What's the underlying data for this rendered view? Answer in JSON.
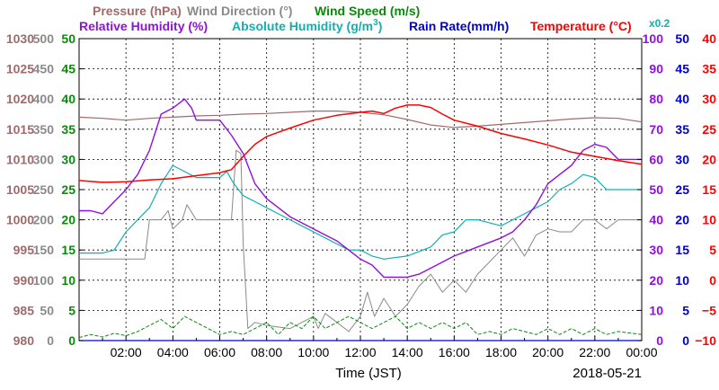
{
  "legend": {
    "pressure": "Pressure (hPa)",
    "wind_dir": "Wind Direction (°)",
    "wind_speed": "Wind Speed (m/s)",
    "rh": "Relative Humidity (%)",
    "ah_text": "Absolute Humidity (g/m",
    "ah_sup": "3",
    "ah_close": ")",
    "rain": "Rain Rate(mm/h)",
    "temp": "Temperature (°C)",
    "x02": "x0.2"
  },
  "xlabel": "Time (JST)",
  "date": "2018-05-21",
  "colors": {
    "pressure": "#a06a6a",
    "wind_dir": "#8a8a8a",
    "wind_speed": "#0a8a0a",
    "rh": "#9010e0",
    "ah": "#10b0b0",
    "rain": "#0000d0",
    "temp": "#ff0000",
    "grid": "#000000"
  },
  "chart_data": {
    "type": "line",
    "x_ticks": [
      "02:00",
      "04:00",
      "06:00",
      "08:00",
      "10:00",
      "12:00",
      "14:00",
      "16:00",
      "18:00",
      "20:00",
      "22:00",
      "00:00"
    ],
    "x_range_hours": [
      0,
      24
    ],
    "axes": {
      "pressure": {
        "range": [
          980,
          1030
        ],
        "ticks": [
          "980",
          "985",
          "990",
          "995",
          "1000",
          "1005",
          "1010",
          "1015",
          "1020",
          "1025",
          "1030"
        ]
      },
      "wind_dir": {
        "range": [
          0,
          500
        ],
        "ticks": [
          "0",
          "50",
          "100",
          "150",
          "200",
          "250",
          "300",
          "350",
          "400",
          "450",
          "500"
        ]
      },
      "wind_speed": {
        "range": [
          0,
          50
        ],
        "ticks": [
          "0",
          "5",
          "10",
          "15",
          "20",
          "25",
          "30",
          "35",
          "40",
          "45",
          "50"
        ]
      },
      "rh": {
        "range": [
          0,
          100
        ],
        "ticks": [
          "0",
          "10",
          "20",
          "30",
          "40",
          "50",
          "60",
          "70",
          "80",
          "90",
          "100"
        ]
      },
      "rain": {
        "range": [
          0,
          50
        ],
        "ticks": [
          "0",
          "5",
          "10",
          "15",
          "20",
          "25",
          "30",
          "35",
          "40",
          "45",
          "50"
        ]
      },
      "temp": {
        "range": [
          -10,
          40
        ],
        "ticks": [
          "−10",
          "−5",
          "0",
          "5",
          "10",
          "15",
          "20",
          "25",
          "30",
          "35",
          "40"
        ]
      }
    },
    "series": [
      {
        "key": "pressure",
        "axis": "pressure",
        "points": [
          [
            0,
            1017
          ],
          [
            1,
            1016.8
          ],
          [
            2,
            1016.5
          ],
          [
            3,
            1016.8
          ],
          [
            4,
            1017.0
          ],
          [
            5,
            1017.2
          ],
          [
            6,
            1017.3
          ],
          [
            7,
            1017.5
          ],
          [
            8,
            1017.6
          ],
          [
            9,
            1017.8
          ],
          [
            10,
            1018
          ],
          [
            11,
            1018
          ],
          [
            12,
            1017.8
          ],
          [
            13,
            1017.4
          ],
          [
            14,
            1016.6
          ],
          [
            15,
            1015.7
          ],
          [
            16,
            1015.3
          ],
          [
            17,
            1015.5
          ],
          [
            18,
            1015.8
          ],
          [
            19,
            1016.1
          ],
          [
            20,
            1016.4
          ],
          [
            21,
            1016.7
          ],
          [
            22,
            1016.9
          ],
          [
            23,
            1016.8
          ],
          [
            24,
            1016.2
          ]
        ]
      },
      {
        "key": "wind_dir",
        "axis": "wind_dir",
        "points": [
          [
            0,
            135
          ],
          [
            2,
            135
          ],
          [
            2.8,
            135
          ],
          [
            3,
            200
          ],
          [
            3.5,
            200
          ],
          [
            3.8,
            215
          ],
          [
            4,
            185
          ],
          [
            4.4,
            200
          ],
          [
            4.6,
            225
          ],
          [
            5,
            200
          ],
          [
            6,
            200
          ],
          [
            6.5,
            200
          ],
          [
            6.7,
            315
          ],
          [
            6.9,
            310
          ],
          [
            7.0,
            160
          ],
          [
            7.2,
            20
          ],
          [
            7.5,
            30
          ],
          [
            8,
            25
          ],
          [
            9,
            20
          ],
          [
            9.5,
            30
          ],
          [
            10,
            40
          ],
          [
            10.2,
            20
          ],
          [
            10.5,
            45
          ],
          [
            11,
            30
          ],
          [
            11.5,
            15
          ],
          [
            12,
            40
          ],
          [
            12.3,
            80
          ],
          [
            12.6,
            40
          ],
          [
            13,
            70
          ],
          [
            13.5,
            40
          ],
          [
            14,
            60
          ],
          [
            14.5,
            90
          ],
          [
            15,
            110
          ],
          [
            15.5,
            80
          ],
          [
            16,
            100
          ],
          [
            16.5,
            80
          ],
          [
            17,
            110
          ],
          [
            17.5,
            130
          ],
          [
            18,
            150
          ],
          [
            18.5,
            170
          ],
          [
            19,
            140
          ],
          [
            19.5,
            175
          ],
          [
            20,
            185
          ],
          [
            20.5,
            180
          ],
          [
            21,
            180
          ],
          [
            21.5,
            200
          ],
          [
            22,
            200
          ],
          [
            22.5,
            185
          ],
          [
            23,
            200
          ],
          [
            24,
            200
          ]
        ]
      },
      {
        "key": "rh",
        "axis": "rh",
        "points": [
          [
            0,
            43
          ],
          [
            0.5,
            43
          ],
          [
            1,
            42
          ],
          [
            1.5,
            46
          ],
          [
            2,
            50
          ],
          [
            2.5,
            55
          ],
          [
            3,
            63
          ],
          [
            3.5,
            75
          ],
          [
            4,
            77
          ],
          [
            4.5,
            80
          ],
          [
            4.8,
            77
          ],
          [
            5.0,
            73
          ],
          [
            5.5,
            73
          ],
          [
            6,
            73
          ],
          [
            6.5,
            68
          ],
          [
            7,
            62
          ],
          [
            7.5,
            52
          ],
          [
            8,
            47
          ],
          [
            9,
            41
          ],
          [
            10,
            37
          ],
          [
            11,
            33
          ],
          [
            12,
            27
          ],
          [
            12.5,
            25
          ],
          [
            13,
            21
          ],
          [
            13.5,
            21
          ],
          [
            14,
            21
          ],
          [
            14.5,
            22
          ],
          [
            15,
            24
          ],
          [
            15.5,
            26
          ],
          [
            16,
            28
          ],
          [
            17,
            31
          ],
          [
            18,
            34
          ],
          [
            18.5,
            36
          ],
          [
            19,
            40
          ],
          [
            19.5,
            45
          ],
          [
            20,
            52
          ],
          [
            20.5,
            55
          ],
          [
            21,
            58
          ],
          [
            21.5,
            63
          ],
          [
            22,
            65
          ],
          [
            22.5,
            64
          ],
          [
            23,
            60
          ],
          [
            24,
            60
          ]
        ]
      },
      {
        "key": "ah",
        "axis": "wind_speed",
        "points": [
          [
            0,
            14.5
          ],
          [
            1,
            14.5
          ],
          [
            1.5,
            15
          ],
          [
            2,
            18
          ],
          [
            2.5,
            20
          ],
          [
            3,
            22
          ],
          [
            3.5,
            26
          ],
          [
            4,
            29
          ],
          [
            5,
            27
          ],
          [
            5.5,
            27
          ],
          [
            6,
            27
          ],
          [
            6.3,
            28
          ],
          [
            6.6,
            26
          ],
          [
            7,
            24
          ],
          [
            7.5,
            23
          ],
          [
            8,
            22
          ],
          [
            8.5,
            21
          ],
          [
            9,
            20
          ],
          [
            10,
            18
          ],
          [
            10.5,
            17
          ],
          [
            11,
            16
          ],
          [
            11.5,
            15
          ],
          [
            12,
            15
          ],
          [
            12.5,
            14
          ],
          [
            13,
            13.5
          ],
          [
            14,
            14
          ],
          [
            15,
            15.5
          ],
          [
            15.5,
            17.5
          ],
          [
            16,
            18
          ],
          [
            16.5,
            20
          ],
          [
            17,
            20
          ],
          [
            18,
            19
          ],
          [
            18.5,
            20
          ],
          [
            19,
            21
          ],
          [
            19.5,
            22
          ],
          [
            20,
            23
          ],
          [
            20.5,
            25
          ],
          [
            21,
            26
          ],
          [
            21.5,
            27.5
          ],
          [
            22,
            27
          ],
          [
            22.5,
            25
          ],
          [
            23,
            25
          ],
          [
            24,
            25
          ]
        ]
      },
      {
        "key": "temp",
        "axis": "temp",
        "points": [
          [
            0,
            16.5
          ],
          [
            1,
            16.2
          ],
          [
            2,
            16.3
          ],
          [
            3,
            16.6
          ],
          [
            4,
            16.8
          ],
          [
            5,
            17.3
          ],
          [
            6,
            17.8
          ],
          [
            6.5,
            18.3
          ],
          [
            7,
            20.5
          ],
          [
            7.5,
            22.5
          ],
          [
            8,
            23.8
          ],
          [
            8.5,
            24.5
          ],
          [
            9,
            25.2
          ],
          [
            10,
            26.5
          ],
          [
            11,
            27.3
          ],
          [
            12,
            27.8
          ],
          [
            12.5,
            28.0
          ],
          [
            13,
            27.6
          ],
          [
            13.5,
            28.5
          ],
          [
            14,
            29.0
          ],
          [
            14.5,
            29.0
          ],
          [
            15,
            28.6
          ],
          [
            15.5,
            27.5
          ],
          [
            16,
            26.5
          ],
          [
            17,
            25.5
          ],
          [
            18,
            24.3
          ],
          [
            19,
            23.4
          ],
          [
            20,
            22.4
          ],
          [
            21,
            21.2
          ],
          [
            22,
            20.5
          ],
          [
            23,
            19.8
          ],
          [
            24,
            19.2
          ]
        ]
      },
      {
        "key": "wind_speed",
        "axis": "wind_speed",
        "points": [
          [
            0,
            0.5
          ],
          [
            0.5,
            1
          ],
          [
            1,
            0.6
          ],
          [
            1.5,
            1.2
          ],
          [
            2,
            0.8
          ],
          [
            2.5,
            1.5
          ],
          [
            3,
            2.5
          ],
          [
            3.5,
            3.5
          ],
          [
            4,
            2
          ],
          [
            4.5,
            4
          ],
          [
            5,
            3
          ],
          [
            5.5,
            2
          ],
          [
            6,
            1
          ],
          [
            6.5,
            1.5
          ],
          [
            7,
            1
          ],
          [
            7.5,
            2
          ],
          [
            8,
            3
          ],
          [
            8.5,
            1
          ],
          [
            9,
            3
          ],
          [
            9.5,
            2
          ],
          [
            10,
            4
          ],
          [
            10.5,
            2
          ],
          [
            11,
            3
          ],
          [
            11.5,
            4
          ],
          [
            12,
            3
          ],
          [
            12.5,
            2
          ],
          [
            13,
            3
          ],
          [
            13.5,
            4
          ],
          [
            14,
            2
          ],
          [
            14.5,
            3
          ],
          [
            15,
            2
          ],
          [
            15.5,
            3
          ],
          [
            16,
            2
          ],
          [
            16.5,
            3
          ],
          [
            17,
            1
          ],
          [
            17.5,
            1.5
          ],
          [
            18,
            1
          ],
          [
            18.5,
            2
          ],
          [
            19,
            1.5
          ],
          [
            19.5,
            1
          ],
          [
            20,
            2
          ],
          [
            20.5,
            1
          ],
          [
            21,
            2
          ],
          [
            21.5,
            1
          ],
          [
            22,
            2
          ],
          [
            22.5,
            1
          ],
          [
            23,
            1.5
          ],
          [
            24,
            1
          ]
        ]
      },
      {
        "key": "rain",
        "axis": "rain",
        "points": [
          [
            0,
            0
          ],
          [
            24,
            0
          ]
        ]
      }
    ]
  }
}
